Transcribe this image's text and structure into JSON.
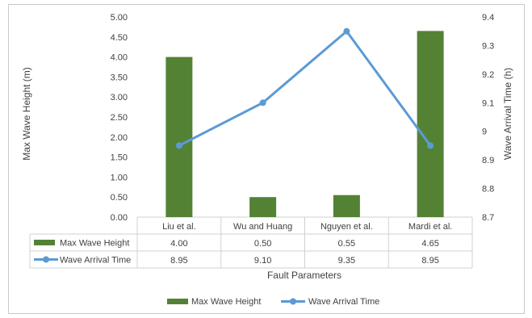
{
  "chart_data": {
    "type": "bar+line",
    "categories": [
      "Liu et al.",
      "Wu and Huang",
      "Nguyen et al.",
      "Mardi et al."
    ],
    "series": [
      {
        "name": "Max Wave Height",
        "type": "bar",
        "axis": "left",
        "values": [
          4.0,
          0.5,
          0.55,
          4.65
        ],
        "display_values": [
          "4.00",
          "0.50",
          "0.55",
          "4.65"
        ],
        "color": "#548235"
      },
      {
        "name": "Wave Arrival Time",
        "type": "line",
        "axis": "right",
        "values": [
          8.95,
          9.1,
          9.35,
          8.95
        ],
        "display_values": [
          "8.95",
          "9.10",
          "9.35",
          "8.95"
        ],
        "color": "#5B9BD5"
      }
    ],
    "xlabel": "Fault Parameters",
    "ylabel_left": "Max Wave Height (m)",
    "ylabel_right": "Wave Arrival Time (h)",
    "ylim_left": [
      0,
      5
    ],
    "ylim_right": [
      8.7,
      9.4
    ],
    "yticks_left": [
      "0.00",
      "0.50",
      "1.00",
      "1.50",
      "2.00",
      "2.50",
      "3.00",
      "3.50",
      "4.00",
      "4.50",
      "5.00"
    ],
    "yticks_right": [
      "8.7",
      "8.8",
      "8.9",
      "9",
      "9.1",
      "9.2",
      "9.3",
      "9.4"
    ],
    "grid": false,
    "data_table": true,
    "legend_position": "bottom"
  }
}
